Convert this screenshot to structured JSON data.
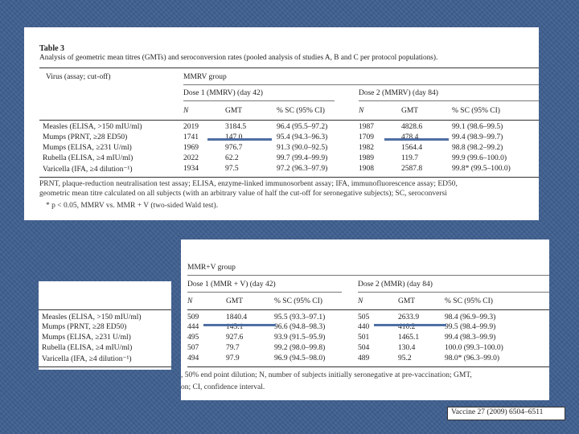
{
  "top": {
    "table_label": "Table 3",
    "title": "Analysis of geometric mean titres (GMTs) and seroconversion rates (pooled analysis of studies A, B and C per protocol populations).",
    "col_virus": "Virus (assay; cut-off)",
    "group": "MMRV group",
    "dose1": "Dose 1 (MMRV) (day 42)",
    "dose2": "Dose 2 (MMRV) (day 84)",
    "sub": [
      "N",
      "GMT",
      "% SC (95% CI)"
    ],
    "rows": [
      {
        "virus": "Measles (ELISA, >150 mIU/ml)",
        "n1": "2019",
        "gmt1": "3184.5",
        "sc1": "96.4 (95.5–97.2)",
        "n2": "1987",
        "gmt2": "4828.6",
        "sc2": "99.1 (98.6–99.5)"
      },
      {
        "virus": "Mumps (PRNT, ≥28 ED50)",
        "n1": "1741",
        "gmt1": "147.0",
        "sc1": "95.4 (94.3–96.3)",
        "n2": "1709",
        "gmt2": "478.4",
        "sc2": "99.4 (98.9–99.7)"
      },
      {
        "virus": "Mumps (ELISA, ≥231 U/ml)",
        "n1": "1969",
        "gmt1": "976.7",
        "sc1": "91.3 (90.0–92.5)",
        "n2": "1982",
        "gmt2": "1564.4",
        "sc2": "98.8 (98.2–99.2)"
      },
      {
        "virus": "Rubella (ELISA, ≥4 mIU/ml)",
        "n1": "2022",
        "gmt1": "62.2",
        "sc1": "99.7 (99.4–99.9)",
        "n2": "1989",
        "gmt2": "119.7",
        "sc2": "99.9 (99.6–100.0)"
      },
      {
        "virus": "Varicella (IFA, ≥4 dilution⁻¹)",
        "n1": "1934",
        "gmt1": "97.5",
        "sc1": "97.2 (96.3–97.9)",
        "n2": "1908",
        "gmt2": "2587.8",
        "sc2": "99.8* (99.5–100.0)"
      }
    ],
    "footnote1": "PRNT, plaque-reduction neutralisation test assay; ELISA, enzyme-linked immunosorbent assay; IFA, immunofluorescence assay; ED50,",
    "footnote2": "geometric mean titre calculated on all subjects (with an arbitrary value of half the cut-off for seronegative subjects); SC, seroconversi",
    "footnote3": "* p < 0.05, MMRV vs. MMR + V (two-sided Wald test)."
  },
  "bottom": {
    "group": "MMR+V group",
    "dose1": "Dose 1 (MMR + V) (day 42)",
    "dose2": "Dose 2 (MMR) (day 84)",
    "sub": [
      "N",
      "GMT",
      "% SC (95% CI)"
    ],
    "rows": [
      {
        "n1": "509",
        "gmt1": "1840.4",
        "sc1": "95.5 (93.3–97.1)",
        "n2": "505",
        "gmt2": "2633.9",
        "sc2": "98.4 (96.9–99.3)"
      },
      {
        "n1": "444",
        "gmt1": "143.1",
        "sc1": "96.6 (94.8–98.3)",
        "n2": "440",
        "gmt2": "410.2",
        "sc2": "99.5 (98.4–99.9)"
      },
      {
        "n1": "495",
        "gmt1": "927.6",
        "sc1": "93.9 (91.5–95.9)",
        "n2": "501",
        "gmt2": "1465.1",
        "sc2": "99.4 (98.3–99.9)"
      },
      {
        "n1": "507",
        "gmt1": "79.7",
        "sc1": "99.2 (98.0–99.8)",
        "n2": "504",
        "gmt2": "130.4",
        "sc2": "100.0 (99.3–100.0)"
      },
      {
        "n1": "494",
        "gmt1": "97.9",
        "sc1": "96.9 (94.5–98.0)",
        "n2": "489",
        "gmt2": "95.2",
        "sc2": "98.0* (96.3–99.0)"
      }
    ],
    "footnote1": ", 50% end point dilution; N, number of subjects initially seronegative at pre-vaccination; GMT,",
    "footnote2": "on; CI, confidence interval."
  },
  "left": {
    "rows": [
      "Measles (ELISA, >150 mIU/ml)",
      "Mumps (PRNT, ≥28 ED50)",
      "Mumps (ELISA, ≥231 U/ml)",
      "Rubella (ELISA, ≥4 mIU/ml)",
      "Varicella (IFA, ≥4 dilution⁻¹)"
    ]
  },
  "citation": "Vaccine 27 (2009) 6504–6511",
  "colors": {
    "background": "#3f5f8f",
    "highlight": "#4e6fa3"
  }
}
